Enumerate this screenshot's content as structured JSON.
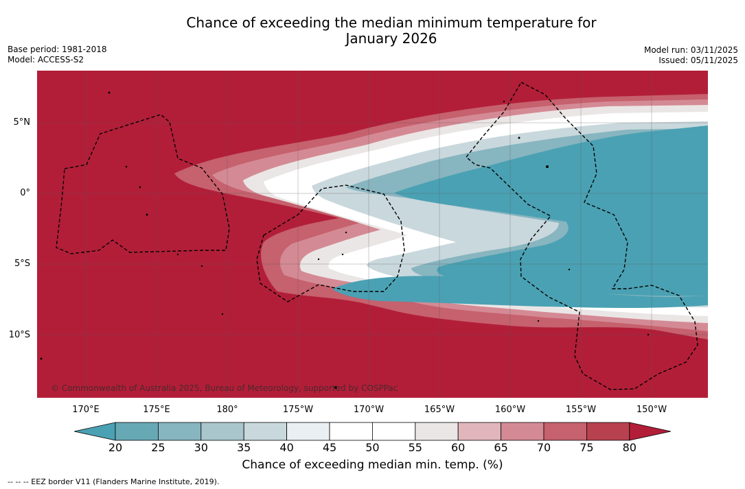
{
  "title": {
    "line1": "Chance of exceeding the median minimum temperature for",
    "line2": "January 2026"
  },
  "meta": {
    "base_period": "Base period: 1981-2018",
    "model": "Model: ACCESS-S2",
    "model_run": "Model run: 03/11/2025",
    "issued": "Issued: 05/11/2025"
  },
  "map": {
    "lat_labels": [
      "5°N",
      "0°",
      "5°S",
      "10°S"
    ],
    "lon_labels": [
      "170°E",
      "175°E",
      "180°",
      "175°W",
      "170°W",
      "165°W",
      "160°W",
      "155°W",
      "150°W"
    ],
    "copyright": "© Commonwealth of Australia 2025, Bureau of Meteorology, supported by COSPPac",
    "background_color": "#b21e38"
  },
  "colorbar": {
    "ticks": [
      "20",
      "25",
      "30",
      "35",
      "40",
      "45",
      "50",
      "55",
      "60",
      "65",
      "70",
      "75",
      "80"
    ],
    "colors": [
      "#67a8b5",
      "#87b5c0",
      "#a8c6cb",
      "#c9d8dc",
      "#e9eff2",
      "#ffffff",
      "#ffffff",
      "#ebe6e6",
      "#e0b6bc",
      "#d48a94",
      "#c6616e",
      "#b8414f"
    ],
    "low_extend_color": "#4aa1b3",
    "high_extend_color": "#b21e38",
    "label": "Chance of exceeding median min. temp. (%)"
  },
  "footnote": "--  --  -- EEZ border V11 (Flanders Marine Institute, 2019)."
}
